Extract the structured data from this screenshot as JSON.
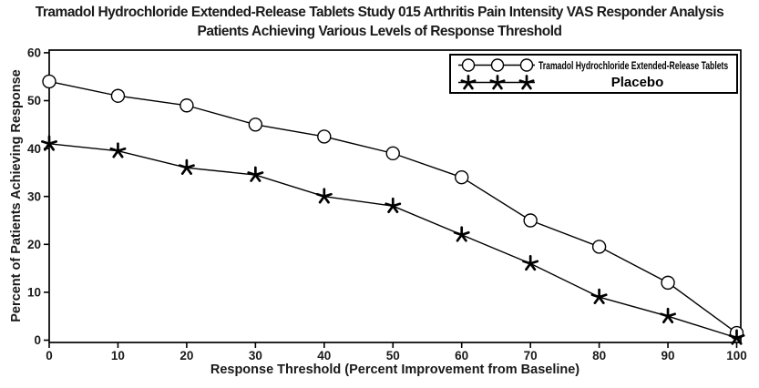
{
  "title": {
    "line1": "Tramadol Hydrochloride Extended-Release Tablets Study 015 Arthritis Pain Intensity VAS Responder Analysis",
    "line2": "Patients Achieving Various Levels of Response Threshold"
  },
  "chart_data": {
    "type": "line",
    "x": [
      0,
      10,
      20,
      30,
      40,
      50,
      60,
      70,
      80,
      90,
      100
    ],
    "series": [
      {
        "name": "Tramadol Hydrochloride Extended-Release Tablets",
        "marker": "circle",
        "values": [
          54,
          51,
          49,
          45,
          42.5,
          39,
          34,
          25,
          19.5,
          12,
          1.5
        ]
      },
      {
        "name": "Placebo",
        "marker": "star",
        "values": [
          41,
          39.5,
          36,
          34.5,
          30,
          28,
          22,
          16,
          9,
          5,
          0.5
        ]
      }
    ],
    "xlabel": "Response Threshold (Percent Improvement from Baseline)",
    "ylabel": "Percent of Patients Achieving Response",
    "xlim": [
      0,
      100
    ],
    "ylim": [
      0,
      60
    ],
    "x_ticks": [
      0,
      10,
      20,
      30,
      40,
      50,
      60,
      70,
      80,
      90,
      100
    ],
    "y_ticks": [
      0,
      10,
      20,
      30,
      40,
      50,
      60
    ],
    "grid": false,
    "legend_position": "top-right",
    "line_color": "#000000",
    "background_color": "#ffffff"
  }
}
